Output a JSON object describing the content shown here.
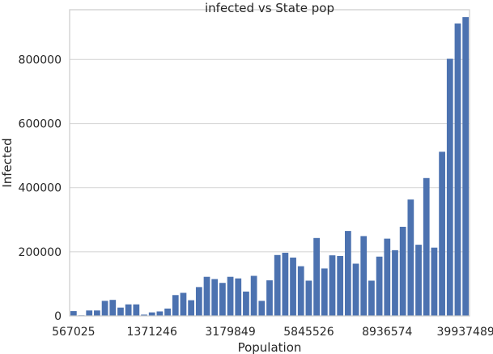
{
  "chart_data": {
    "type": "bar",
    "title": "infected vs State pop",
    "xlabel": "Population",
    "ylabel": "Infected",
    "ylim": [
      0,
      955000
    ],
    "yticks": [
      0,
      200000,
      400000,
      600000,
      800000
    ],
    "xtick_labels": [
      "567025",
      "1371246",
      "3179849",
      "5845526",
      "8936574",
      "39937489"
    ],
    "xtick_indices": [
      0,
      10,
      20,
      30,
      40,
      50
    ],
    "grid": "horizontal",
    "bar_color": "#4c72b0",
    "values": [
      15000,
      2000,
      17000,
      17000,
      47000,
      50000,
      26000,
      36000,
      36000,
      4000,
      11000,
      14000,
      23000,
      65000,
      72000,
      49000,
      90000,
      122000,
      115000,
      103000,
      122000,
      117000,
      76000,
      125000,
      47000,
      111000,
      190000,
      197000,
      182000,
      155000,
      110000,
      243000,
      148000,
      189000,
      187000,
      265000,
      163000,
      249000,
      110000,
      185000,
      241000,
      205000,
      278000,
      363000,
      222000,
      430000,
      213000,
      512000,
      802000,
      912000,
      932000
    ]
  }
}
